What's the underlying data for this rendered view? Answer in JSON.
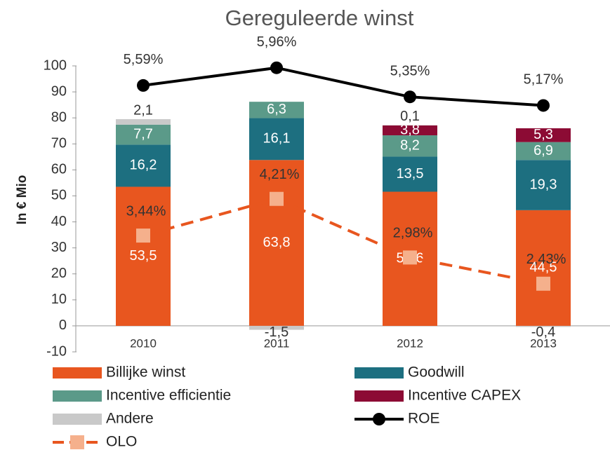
{
  "chart_data": {
    "type": "bar",
    "stacked": true,
    "title": "Gereguleerde winst",
    "y_label": "In € Mio",
    "categories": [
      "2010",
      "2011",
      "2012",
      "2013"
    ],
    "ylim": [
      -10,
      100
    ],
    "yticks": [
      -10,
      0,
      10,
      20,
      30,
      40,
      50,
      60,
      70,
      80,
      90,
      100
    ],
    "y2lim": [
      0,
      6
    ],
    "y3lim": [
      1,
      7
    ],
    "series": [
      {
        "name": "Billijke winst",
        "color": "#e8561f",
        "values": [
          53.5,
          63.8,
          51.6,
          44.5
        ],
        "value_labels": [
          "53,5",
          "63,8",
          "51,6",
          "44,5"
        ]
      },
      {
        "name": "Goodwill",
        "color": "#1d6f80",
        "values": [
          16.2,
          16.1,
          13.5,
          19.3
        ],
        "value_labels": [
          "16,2",
          "16,1",
          "13,5",
          "19,3"
        ]
      },
      {
        "name": "Incentive efficientie",
        "color": "#5b9a89",
        "values": [
          7.7,
          6.3,
          8.2,
          6.9
        ],
        "value_labels": [
          "7,7",
          "6,3",
          "8,2",
          "6,9"
        ]
      },
      {
        "name": "Incentive CAPEX",
        "color": "#8c0b34",
        "values": [
          null,
          null,
          3.8,
          5.3
        ],
        "value_labels": [
          null,
          null,
          "3,8",
          "5,3"
        ]
      },
      {
        "name": "Andere",
        "color": "#c9c9c9",
        "values": [
          2.1,
          -1.5,
          0.1,
          -0.4
        ],
        "value_labels": [
          "2,1",
          "-1,5",
          "0,1",
          "-0,4"
        ]
      },
      {
        "name": "ROE",
        "type": "line",
        "axis": "y2",
        "color": "#000000",
        "values": [
          5.59,
          5.96,
          5.35,
          5.17
        ],
        "value_labels": [
          "5,59%",
          "5,96%",
          "5,35%",
          "5,17%"
        ]
      },
      {
        "name": "OLO",
        "type": "line",
        "axis": "y3",
        "color": "#e8561f",
        "marker_color": "#f5b08c",
        "dashed": true,
        "values": [
          3.44,
          4.21,
          2.98,
          2.43
        ],
        "value_labels": [
          "3,44%",
          "4,21%",
          "2,98%",
          "2,43%"
        ]
      }
    ]
  }
}
